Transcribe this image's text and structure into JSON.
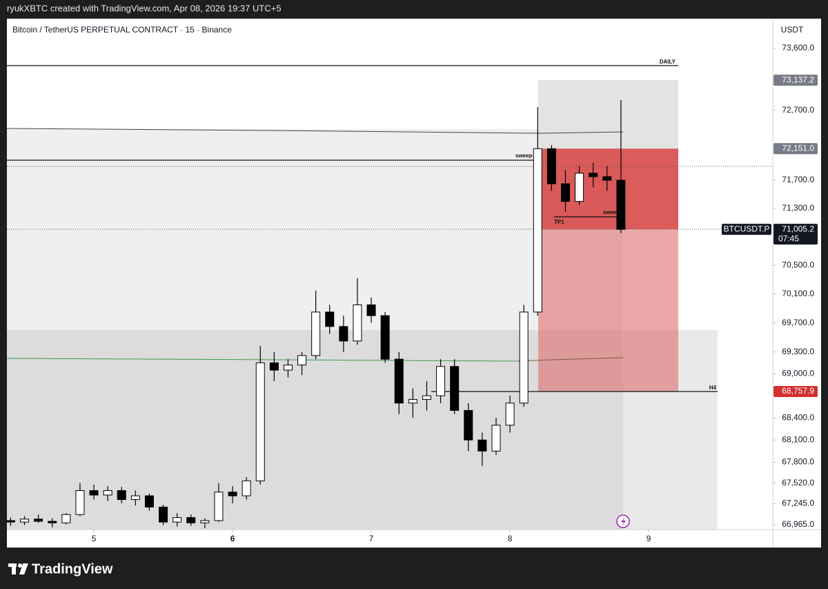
{
  "header": "ryukXBTC created with TradingView.com, Apr 08, 2026 19:37 UTC+5",
  "logo": "TradingView",
  "chart_data": {
    "type": "candlestick",
    "title": "Bitcoin / TetherUS PERPETUAL CONTRACT · 15 · Binance",
    "axis_unit": "USDT",
    "symbol": "BTCUSDT.P",
    "countdown": "07:45",
    "log_scale": true,
    "grid": false,
    "up_color": "#ffffff",
    "down_color": "#000000",
    "xlim": [
      4.373,
      9.895
    ],
    "xticks": [
      5,
      6,
      7,
      8,
      9
    ],
    "ylim": [
      66900,
      74035
    ],
    "yticks": [
      {
        "value": 73600,
        "label": "73,600.0"
      },
      {
        "value": 72700,
        "label": "72,700.0"
      },
      {
        "value": 71700,
        "label": "71,700.0"
      },
      {
        "value": 71300,
        "label": "71,300.0"
      },
      {
        "value": 70500,
        "label": "70,500.0"
      },
      {
        "value": 70100,
        "label": "70,100.0"
      },
      {
        "value": 69700,
        "label": "69,700.0"
      },
      {
        "value": 69300,
        "label": "69,300.0"
      },
      {
        "value": 69000,
        "label": "69,000.0"
      },
      {
        "value": 68400,
        "label": "68,400.0"
      },
      {
        "value": 68100,
        "label": "68,100.0"
      },
      {
        "value": 67800,
        "label": "67,800.0"
      },
      {
        "value": 67520,
        "label": "67,520.0"
      },
      {
        "value": 67245,
        "label": "67,245.0"
      },
      {
        "value": 66965,
        "label": "66,965.0"
      }
    ],
    "x": [
      4.4,
      4.5,
      4.6,
      4.7,
      4.8,
      4.9,
      5.0,
      5.1,
      5.2,
      5.3,
      5.4,
      5.5,
      5.6,
      5.7,
      5.8,
      5.9,
      6.0,
      6.1,
      6.2,
      6.3,
      6.4,
      6.5,
      6.6,
      6.7,
      6.8,
      6.9,
      7.0,
      7.1,
      7.2,
      7.3,
      7.4,
      7.5,
      7.6,
      7.7,
      7.8,
      7.9,
      8.0,
      8.1,
      8.2,
      8.3,
      8.4,
      8.5,
      8.6,
      8.7,
      8.8
    ],
    "ohlc": [
      [
        67020,
        67060,
        66950,
        67000
      ],
      [
        67000,
        67080,
        66960,
        67040
      ],
      [
        67040,
        67100,
        66990,
        67010
      ],
      [
        67010,
        67050,
        66930,
        66990
      ],
      [
        66990,
        67120,
        66970,
        67100
      ],
      [
        67100,
        67520,
        67080,
        67420
      ],
      [
        67420,
        67500,
        67300,
        67360
      ],
      [
        67360,
        67480,
        67280,
        67420
      ],
      [
        67420,
        67470,
        67250,
        67300
      ],
      [
        67300,
        67420,
        67220,
        67350
      ],
      [
        67350,
        67380,
        67150,
        67200
      ],
      [
        67200,
        67230,
        66960,
        67000
      ],
      [
        67000,
        67120,
        66940,
        67060
      ],
      [
        67060,
        67100,
        66950,
        66990
      ],
      [
        66990,
        67050,
        66920,
        67020
      ],
      [
        67020,
        67520,
        67000,
        67400
      ],
      [
        67400,
        67480,
        67250,
        67350
      ],
      [
        67350,
        67600,
        67300,
        67550
      ],
      [
        67550,
        69380,
        67500,
        69150
      ],
      [
        69150,
        69300,
        68900,
        69050
      ],
      [
        69050,
        69200,
        68950,
        69120
      ],
      [
        69120,
        69300,
        68980,
        69250
      ],
      [
        69250,
        70150,
        69200,
        69850
      ],
      [
        69850,
        69950,
        69550,
        69650
      ],
      [
        69650,
        69800,
        69300,
        69450
      ],
      [
        69450,
        70320,
        69400,
        69950
      ],
      [
        69950,
        70050,
        69700,
        69800
      ],
      [
        69800,
        69850,
        69150,
        69200
      ],
      [
        69200,
        69300,
        68450,
        68600
      ],
      [
        68600,
        68800,
        68400,
        68650
      ],
      [
        68650,
        68900,
        68500,
        68700
      ],
      [
        68700,
        69200,
        68600,
        69100
      ],
      [
        69100,
        69200,
        68450,
        68500
      ],
      [
        68500,
        68600,
        67950,
        68100
      ],
      [
        68100,
        68200,
        67750,
        67950
      ],
      [
        67950,
        68400,
        67900,
        68300
      ],
      [
        68300,
        68700,
        68200,
        68600
      ],
      [
        68600,
        69950,
        68550,
        69850
      ],
      [
        69850,
        72750,
        69800,
        72150
      ],
      [
        72150,
        72200,
        71550,
        71650
      ],
      [
        71650,
        71850,
        71250,
        71400
      ],
      [
        71400,
        71900,
        71350,
        71800
      ],
      [
        71800,
        71950,
        71600,
        71750
      ],
      [
        71750,
        71900,
        71550,
        71700
      ],
      [
        71700,
        72850,
        70950,
        71005
      ]
    ],
    "markers": {
      "values": [
        73137.2,
        72151.0,
        71005.2,
        68757.9
      ],
      "value_labels": [
        "73,137.2",
        "72,151.0",
        "71,005.2",
        "68,757.9"
      ],
      "colors": [
        "#787b86",
        "#787b86",
        "#131722",
        "#d32f2f"
      ]
    },
    "annotations": [
      "DAILY",
      "sweep",
      "TP1",
      "sweep",
      "H4"
    ]
  }
}
